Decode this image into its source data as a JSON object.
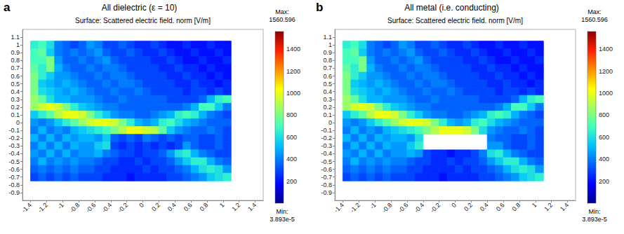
{
  "chart_data": [
    {
      "type": "heatmap",
      "panel": "a",
      "title": "All dielectric (ε = 10)",
      "subtitle": "Surface: Scattered electric field. norm [V/m]",
      "xlim": [
        -1.5,
        1.5
      ],
      "xticks": [
        -1.4,
        -1.2,
        -1,
        -0.8,
        -0.6,
        -0.4,
        -0.2,
        0,
        0.2,
        0.4,
        0.6,
        0.8,
        1,
        1.2,
        1.4
      ],
      "ylim": [
        -1,
        1.2
      ],
      "yticks": [
        -0.9,
        -0.8,
        -0.7,
        -0.6,
        -0.5,
        -0.4,
        -0.3,
        -0.2,
        -0.1,
        0,
        0.1,
        0.2,
        0.3,
        0.4,
        0.5,
        0.6,
        0.7,
        0.8,
        0.9,
        1,
        1.1
      ],
      "grid": false,
      "x": [
        -1.35,
        -1.25,
        -1.15,
        -1.05,
        -0.95,
        -0.85,
        -0.75,
        -0.65,
        -0.55,
        -0.45,
        -0.35,
        -0.25,
        -0.15,
        -0.05,
        0.05,
        0.15,
        0.25,
        0.35,
        0.45,
        0.55,
        0.65,
        0.75,
        0.85,
        0.95,
        1.05
      ],
      "y": [
        1,
        0.9,
        0.8,
        0.7,
        0.6,
        0.5,
        0.4,
        0.3,
        0.2,
        0.1,
        0,
        -0.1,
        -0.2,
        -0.3,
        -0.4,
        -0.5,
        -0.6,
        -0.7
      ],
      "cells": [
        [
          650,
          700,
          600,
          400,
          350,
          300,
          350,
          450,
          400,
          300,
          300,
          350,
          300,
          250,
          250,
          300,
          250,
          200,
          200,
          250,
          200,
          200,
          250,
          200,
          200
        ],
        [
          700,
          750,
          550,
          400,
          350,
          400,
          350,
          400,
          450,
          350,
          300,
          300,
          350,
          300,
          250,
          250,
          300,
          250,
          200,
          200,
          250,
          200,
          200,
          250,
          200
        ],
        [
          700,
          700,
          800,
          450,
          350,
          350,
          400,
          350,
          400,
          450,
          350,
          300,
          300,
          300,
          300,
          250,
          250,
          300,
          250,
          200,
          200,
          250,
          200,
          200,
          250
        ],
        [
          750,
          650,
          800,
          500,
          400,
          350,
          350,
          400,
          350,
          400,
          400,
          350,
          300,
          300,
          300,
          300,
          250,
          250,
          300,
          250,
          250,
          200,
          250,
          200,
          200
        ],
        [
          800,
          650,
          550,
          450,
          450,
          400,
          350,
          350,
          400,
          350,
          400,
          400,
          350,
          300,
          300,
          300,
          300,
          250,
          250,
          300,
          250,
          250,
          200,
          250,
          200
        ],
        [
          800,
          550,
          500,
          450,
          500,
          450,
          400,
          350,
          350,
          400,
          350,
          400,
          400,
          350,
          300,
          300,
          300,
          300,
          250,
          250,
          300,
          250,
          250,
          200,
          250
        ],
        [
          800,
          600,
          550,
          500,
          450,
          500,
          450,
          400,
          350,
          350,
          400,
          350,
          350,
          400,
          350,
          300,
          300,
          300,
          300,
          250,
          300,
          300,
          250,
          300,
          250
        ],
        [
          850,
          750,
          600,
          500,
          500,
          450,
          450,
          450,
          400,
          350,
          350,
          400,
          350,
          350,
          350,
          350,
          350,
          300,
          300,
          300,
          300,
          350,
          500,
          650,
          700
        ],
        [
          850,
          950,
          1000,
          950,
          800,
          650,
          550,
          500,
          450,
          400,
          400,
          350,
          350,
          350,
          350,
          350,
          350,
          350,
          350,
          400,
          500,
          700,
          700,
          550,
          400
        ],
        [
          550,
          650,
          750,
          900,
          1000,
          1000,
          950,
          800,
          650,
          550,
          450,
          400,
          400,
          350,
          350,
          400,
          450,
          500,
          650,
          700,
          650,
          500,
          400,
          350,
          300
        ],
        [
          450,
          400,
          450,
          550,
          650,
          750,
          850,
          950,
          1000,
          1000,
          950,
          800,
          650,
          500,
          450,
          500,
          650,
          700,
          600,
          500,
          450,
          400,
          350,
          350,
          350
        ],
        [
          400,
          500,
          400,
          450,
          400,
          500,
          550,
          600,
          650,
          700,
          800,
          900,
          1000,
          1000,
          950,
          900,
          750,
          550,
          450,
          400,
          350,
          350,
          400,
          350,
          300
        ],
        [
          500,
          400,
          500,
          400,
          500,
          450,
          500,
          500,
          450,
          550,
          350,
          300,
          350,
          300,
          400,
          350,
          300,
          350,
          300,
          350,
          350,
          300,
          300,
          350,
          300
        ],
        [
          400,
          500,
          400,
          500,
          400,
          500,
          450,
          450,
          550,
          600,
          300,
          250,
          300,
          250,
          300,
          250,
          300,
          250,
          300,
          450,
          350,
          300,
          300,
          350,
          300
        ],
        [
          450,
          400,
          500,
          400,
          500,
          400,
          450,
          450,
          500,
          400,
          350,
          300,
          300,
          250,
          300,
          300,
          350,
          450,
          600,
          650,
          500,
          400,
          350,
          300,
          300
        ],
        [
          400,
          500,
          400,
          450,
          400,
          450,
          400,
          400,
          350,
          300,
          300,
          250,
          250,
          300,
          250,
          300,
          300,
          350,
          450,
          550,
          650,
          650,
          500,
          400,
          350
        ],
        [
          350,
          400,
          350,
          400,
          350,
          400,
          350,
          350,
          300,
          300,
          250,
          250,
          250,
          250,
          300,
          250,
          300,
          300,
          350,
          400,
          500,
          600,
          650,
          600,
          450
        ],
        [
          300,
          350,
          300,
          350,
          300,
          350,
          300,
          300,
          300,
          250,
          250,
          250,
          200,
          250,
          250,
          250,
          250,
          300,
          300,
          350,
          400,
          450,
          550,
          600,
          650
        ]
      ],
      "colorbar": {
        "max_title": "Max:",
        "max": 1560.596,
        "min_title": "Min:",
        "min": {
          "value": 3.893e-05,
          "label": "3.893e-5"
        },
        "ticks": [
          200,
          400,
          600,
          800,
          1000,
          1200,
          1400
        ]
      }
    },
    {
      "type": "heatmap",
      "panel": "b",
      "title": "All metal (i.e. conducting)",
      "subtitle": "Surface: Scattered electric field. norm [V/m]",
      "xlim": [
        -1.5,
        1.5
      ],
      "xticks": [
        -1.4,
        -1.2,
        -1,
        -0.8,
        -0.6,
        -0.4,
        -0.2,
        0,
        0.2,
        0.4,
        0.6,
        0.8,
        1,
        1.2,
        1.4
      ],
      "ylim": [
        -1,
        1.2
      ],
      "yticks": [
        -0.9,
        -0.8,
        -0.7,
        -0.6,
        -0.5,
        -0.4,
        -0.3,
        -0.2,
        -0.1,
        0,
        0.1,
        0.2,
        0.3,
        0.4,
        0.5,
        0.6,
        0.7,
        0.8,
        0.9,
        1,
        1.1
      ],
      "grid": false,
      "x": [
        -1.35,
        -1.25,
        -1.15,
        -1.05,
        -0.95,
        -0.85,
        -0.75,
        -0.65,
        -0.55,
        -0.45,
        -0.35,
        -0.25,
        -0.15,
        -0.05,
        0.05,
        0.15,
        0.25,
        0.35,
        0.45,
        0.55,
        0.65,
        0.75,
        0.85,
        0.95,
        1.05
      ],
      "y": [
        1,
        0.9,
        0.8,
        0.7,
        0.6,
        0.5,
        0.4,
        0.3,
        0.2,
        0.1,
        0,
        -0.1,
        -0.2,
        -0.3,
        -0.4,
        -0.5,
        -0.6,
        -0.7
      ],
      "cells": [
        [
          650,
          700,
          600,
          400,
          350,
          300,
          350,
          450,
          400,
          300,
          300,
          350,
          300,
          250,
          250,
          300,
          250,
          200,
          200,
          250,
          200,
          200,
          250,
          200,
          200
        ],
        [
          700,
          750,
          550,
          400,
          350,
          400,
          350,
          400,
          450,
          350,
          300,
          300,
          350,
          300,
          250,
          250,
          300,
          250,
          200,
          200,
          250,
          200,
          200,
          250,
          200
        ],
        [
          700,
          700,
          800,
          450,
          350,
          350,
          400,
          350,
          400,
          450,
          350,
          300,
          300,
          300,
          300,
          250,
          250,
          300,
          250,
          200,
          200,
          250,
          200,
          200,
          250
        ],
        [
          750,
          650,
          800,
          500,
          400,
          350,
          350,
          400,
          350,
          400,
          400,
          350,
          300,
          300,
          300,
          300,
          250,
          250,
          300,
          250,
          250,
          200,
          250,
          200,
          200
        ],
        [
          800,
          650,
          550,
          450,
          450,
          400,
          350,
          350,
          400,
          350,
          400,
          400,
          350,
          300,
          300,
          300,
          300,
          250,
          250,
          300,
          250,
          250,
          200,
          250,
          200
        ],
        [
          800,
          550,
          500,
          450,
          500,
          450,
          400,
          350,
          350,
          400,
          350,
          400,
          400,
          350,
          300,
          300,
          300,
          300,
          250,
          250,
          300,
          250,
          250,
          200,
          250
        ],
        [
          800,
          600,
          550,
          500,
          450,
          500,
          450,
          400,
          350,
          350,
          400,
          350,
          350,
          400,
          350,
          300,
          300,
          300,
          300,
          250,
          300,
          300,
          250,
          300,
          250
        ],
        [
          850,
          750,
          600,
          500,
          500,
          450,
          450,
          450,
          400,
          350,
          350,
          400,
          350,
          350,
          350,
          350,
          350,
          300,
          300,
          300,
          300,
          350,
          500,
          650,
          700
        ],
        [
          850,
          950,
          1000,
          950,
          800,
          650,
          550,
          500,
          450,
          400,
          400,
          350,
          350,
          350,
          350,
          350,
          350,
          350,
          350,
          400,
          500,
          700,
          700,
          550,
          400
        ],
        [
          550,
          650,
          750,
          900,
          1000,
          1000,
          950,
          800,
          650,
          550,
          450,
          400,
          400,
          350,
          350,
          400,
          450,
          500,
          650,
          700,
          650,
          500,
          400,
          350,
          300
        ],
        [
          450,
          400,
          450,
          550,
          650,
          750,
          850,
          950,
          1000,
          1000,
          950,
          800,
          650,
          500,
          450,
          500,
          650,
          700,
          600,
          500,
          450,
          400,
          350,
          350,
          350
        ],
        [
          400,
          500,
          400,
          450,
          400,
          500,
          550,
          600,
          650,
          700,
          800,
          900,
          1000,
          1000,
          1000,
          950,
          800,
          600,
          450,
          400,
          350,
          350,
          400,
          350,
          300
        ],
        [
          500,
          400,
          500,
          400,
          500,
          450,
          500,
          500,
          450,
          600,
          null,
          null,
          null,
          null,
          null,
          null,
          null,
          null,
          400,
          350,
          350,
          300,
          300,
          350,
          300
        ],
        [
          400,
          500,
          400,
          500,
          400,
          500,
          450,
          450,
          550,
          650,
          null,
          null,
          null,
          null,
          null,
          null,
          null,
          null,
          450,
          450,
          350,
          300,
          300,
          350,
          300
        ],
        [
          450,
          400,
          500,
          400,
          500,
          400,
          450,
          450,
          500,
          450,
          300,
          250,
          250,
          200,
          250,
          250,
          300,
          400,
          600,
          650,
          500,
          400,
          350,
          300,
          300
        ],
        [
          400,
          500,
          400,
          450,
          400,
          450,
          400,
          400,
          350,
          300,
          300,
          250,
          250,
          300,
          250,
          300,
          300,
          350,
          450,
          550,
          650,
          650,
          500,
          400,
          350
        ],
        [
          350,
          400,
          350,
          400,
          350,
          400,
          350,
          350,
          300,
          300,
          250,
          250,
          250,
          250,
          300,
          250,
          300,
          300,
          350,
          400,
          500,
          600,
          650,
          600,
          450
        ],
        [
          300,
          350,
          300,
          350,
          300,
          350,
          300,
          300,
          300,
          250,
          250,
          250,
          200,
          250,
          250,
          250,
          250,
          300,
          300,
          350,
          400,
          450,
          550,
          600,
          650
        ]
      ],
      "colorbar": {
        "max_title": "Max:",
        "max": 1560.596,
        "min_title": "Min:",
        "min": {
          "value": 3.893e-05,
          "label": "3.893e-5"
        },
        "ticks": [
          200,
          400,
          600,
          800,
          1000,
          1200,
          1400
        ]
      }
    }
  ]
}
